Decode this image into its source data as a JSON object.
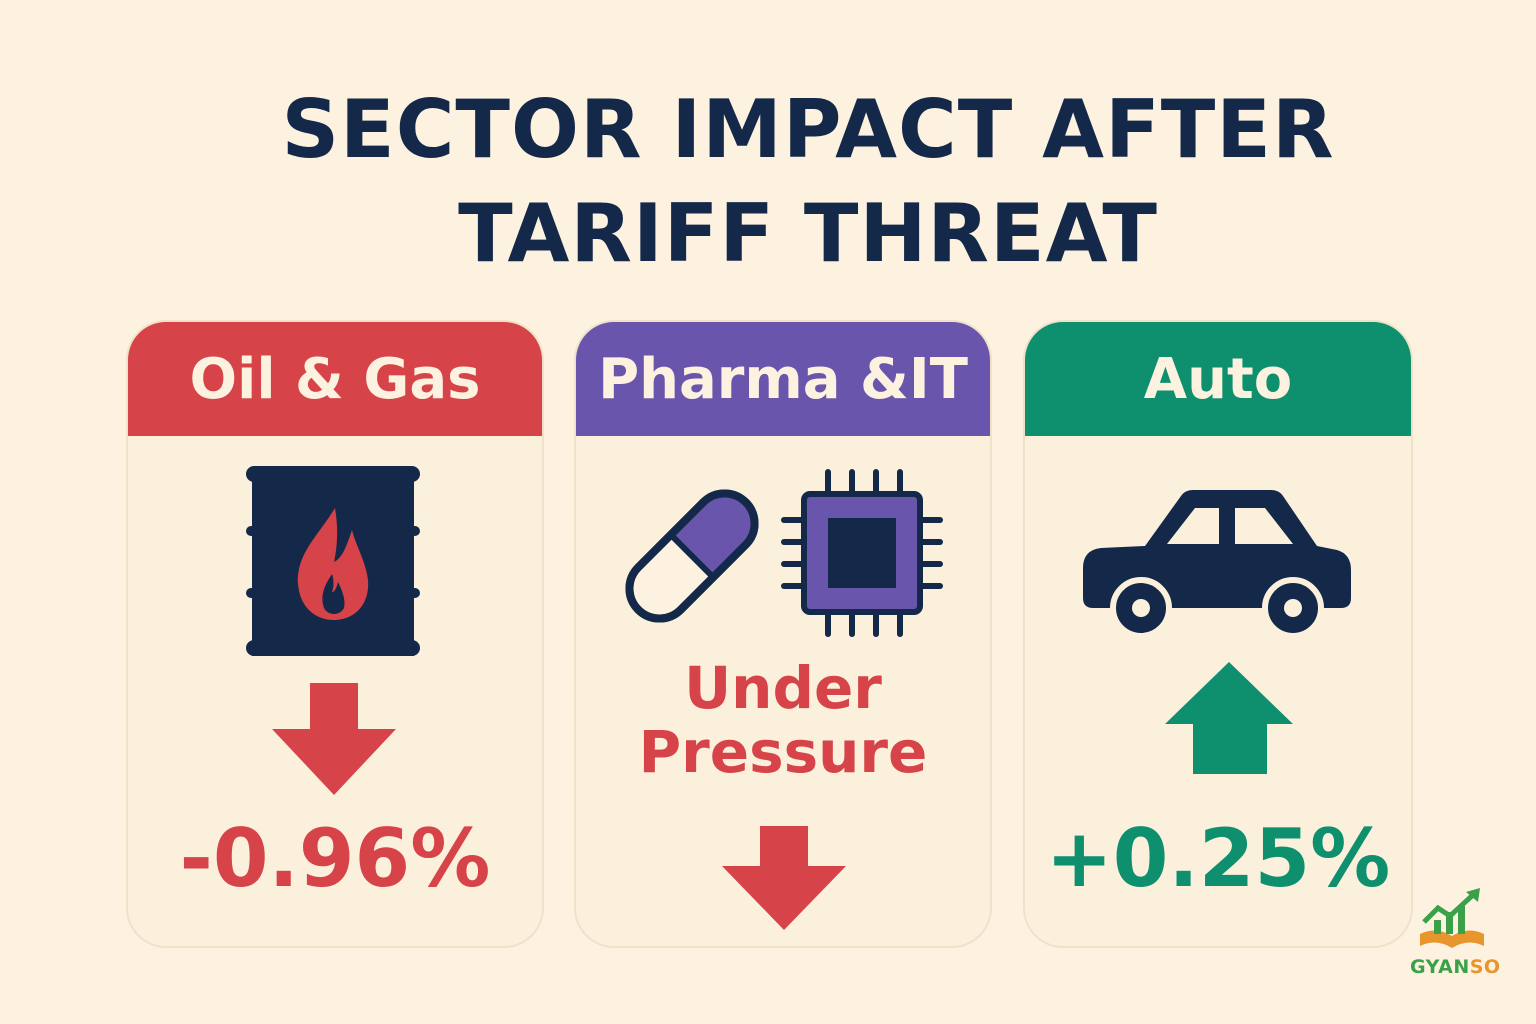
{
  "title_line1": "SECTOR IMPACT AFTER",
  "title_line2": "TARIFF THREAT",
  "cards": [
    {
      "header": "Oil & Gas",
      "color": "#d64348",
      "icon": "oil-barrel-flame-icon",
      "trend": "down",
      "value": "-0.96%"
    },
    {
      "header": "Pharma &IT",
      "color": "#6a55ad",
      "icons": [
        "pill-capsule-icon",
        "microchip-icon"
      ],
      "trend": "down",
      "status_line1": "Under",
      "status_line2": "Pressure"
    },
    {
      "header": "Auto",
      "color": "#0e8f6e",
      "icon": "car-icon",
      "trend": "up",
      "value": "+0.25%"
    }
  ],
  "colors": {
    "navy": "#14294a",
    "background": "#fcf2df",
    "down": "#d64348",
    "up": "#0e8f6e"
  },
  "logo": {
    "prefix": "GYAN",
    "suffix": "SO"
  }
}
